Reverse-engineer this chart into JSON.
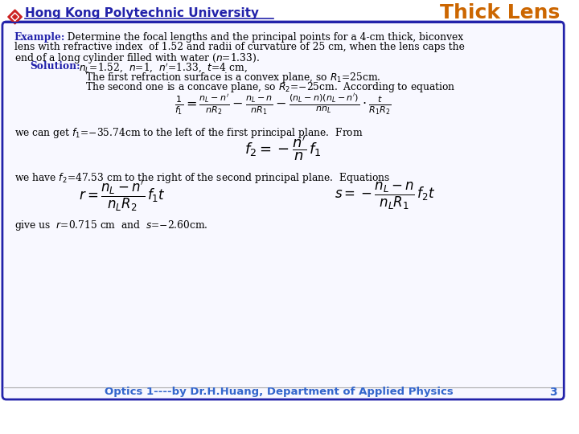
{
  "bg_color": "#ffffff",
  "border_color": "#2222aa",
  "title_text": "Thick Lens",
  "title_color": "#cc6600",
  "univ_text": "Hong Kong Polytechnic University",
  "univ_color": "#2222aa",
  "footer_text": "Optics 1----by Dr.H.Huang, Department of Applied Physics",
  "footer_color": "#3366cc",
  "page_num": "3",
  "example_label": "Example:",
  "example_color": "#2222aa",
  "solution_label": "Solution:",
  "solution_color": "#2222aa",
  "body_color": "#000000",
  "formula_color": "#000000",
  "box_fill": "#f8f8ff"
}
